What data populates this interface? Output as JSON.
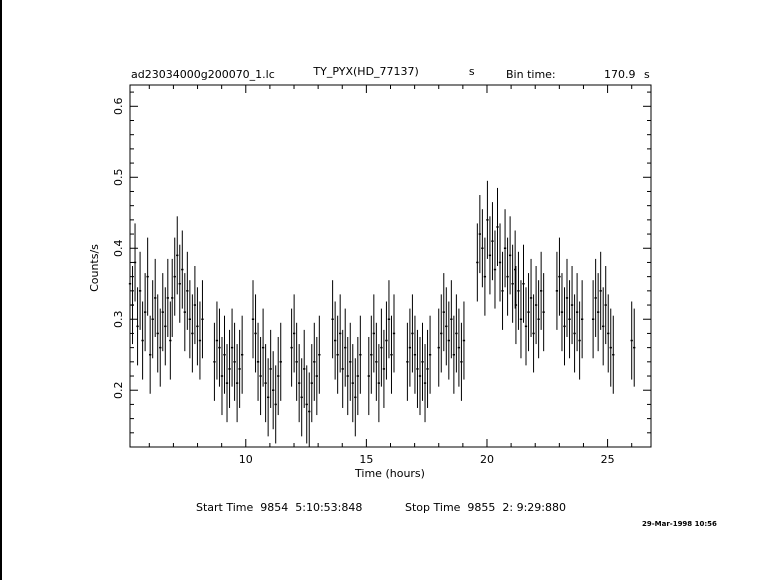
{
  "header": {
    "title_source": "TY_PYX(HD_77137)",
    "title_unit": "s",
    "file_name": "ad23034000g200070_1.lc",
    "bin_time_label": "Bin time:",
    "bin_time_value": "170.9",
    "bin_time_unit": "s"
  },
  "footer": {
    "start_time": "Start Time  9854  5:10:53:848",
    "stop_time": "Stop Time  9855  2: 9:29:880",
    "timestamp": "29-Mar-1998 10:56"
  },
  "chart_data": {
    "type": "line",
    "title": "TY_PYX(HD_77137)",
    "xlabel": "Time (hours)",
    "ylabel": "Counts/s",
    "xlim": [
      5.2,
      26.8
    ],
    "ylim": [
      0.12,
      0.63
    ],
    "xticks": [
      10,
      15,
      20,
      25
    ],
    "yticks": [
      0.2,
      0.3,
      0.4,
      0.5,
      0.6
    ],
    "xtick_labels": [
      "10",
      "15",
      "20",
      "25"
    ],
    "ytick_labels": [
      "0.2",
      "0.3",
      "0.4",
      "0.5",
      "0.6"
    ],
    "grid": false,
    "segments": [
      {
        "start": 5.2,
        "points": [
          0.35,
          0.32,
          0.38,
          0.29,
          0.34,
          0.27,
          0.31,
          0.36,
          0.25,
          0.3,
          0.33,
          0.28,
          0.26,
          0.31,
          0.29,
          0.33,
          0.27
        ]
      },
      {
        "start": 6.95,
        "points": [
          0.33,
          0.36,
          0.39,
          0.35,
          0.37,
          0.31,
          0.34,
          0.3,
          0.28,
          0.32,
          0.29,
          0.27,
          0.3
        ]
      },
      {
        "start": 8.7,
        "points": [
          0.24,
          0.27,
          0.26,
          0.22,
          0.25,
          0.21,
          0.23,
          0.26,
          0.24,
          0.21,
          0.23,
          0.25
        ]
      },
      {
        "start": 10.3,
        "points": [
          0.3,
          0.28,
          0.24,
          0.22,
          0.26,
          0.21,
          0.19,
          0.23,
          0.2,
          0.18,
          0.22,
          0.24
        ]
      },
      {
        "start": 11.9,
        "points": [
          0.26,
          0.28,
          0.24,
          0.21,
          0.19,
          0.23,
          0.18,
          0.17,
          0.21,
          0.24,
          0.22,
          0.25
        ]
      },
      {
        "start": 13.6,
        "points": [
          0.3,
          0.27,
          0.25,
          0.28,
          0.23,
          0.26,
          0.22,
          0.24,
          0.21,
          0.19,
          0.22,
          0.25
        ]
      },
      {
        "start": 15.1,
        "points": [
          0.22,
          0.25,
          0.28,
          0.24,
          0.21,
          0.26,
          0.23,
          0.27,
          0.3,
          0.25,
          0.28
        ]
      },
      {
        "start": 16.7,
        "points": [
          0.24,
          0.26,
          0.28,
          0.25,
          0.23,
          0.22,
          0.24,
          0.21,
          0.23,
          0.25
        ]
      },
      {
        "start": 18.0,
        "points": [
          0.26,
          0.28,
          0.31,
          0.29,
          0.27,
          0.3,
          0.25,
          0.28,
          0.26,
          0.24,
          0.27
        ]
      },
      {
        "start": 19.6,
        "points": [
          0.38,
          0.42,
          0.4,
          0.36,
          0.44,
          0.39,
          0.41,
          0.37,
          0.43,
          0.38,
          0.34,
          0.4,
          0.36,
          0.39,
          0.35,
          0.37
        ]
      },
      {
        "start": 21.2,
        "points": [
          0.32,
          0.34,
          0.3,
          0.35,
          0.29,
          0.31,
          0.33,
          0.28,
          0.32,
          0.3,
          0.34,
          0.31
        ]
      },
      {
        "start": 22.9,
        "points": [
          0.34,
          0.36,
          0.31,
          0.29,
          0.33,
          0.3,
          0.32,
          0.28,
          0.31,
          0.27,
          0.3
        ]
      },
      {
        "start": 24.4,
        "points": [
          0.3,
          0.33,
          0.31,
          0.34,
          0.29,
          0.32,
          0.28,
          0.26,
          0.25
        ]
      },
      {
        "start": 26.0,
        "points": [
          0.27,
          0.26
        ]
      }
    ],
    "bin_hours": 0.0475,
    "errorbar_halfwidth": 0.055
  }
}
